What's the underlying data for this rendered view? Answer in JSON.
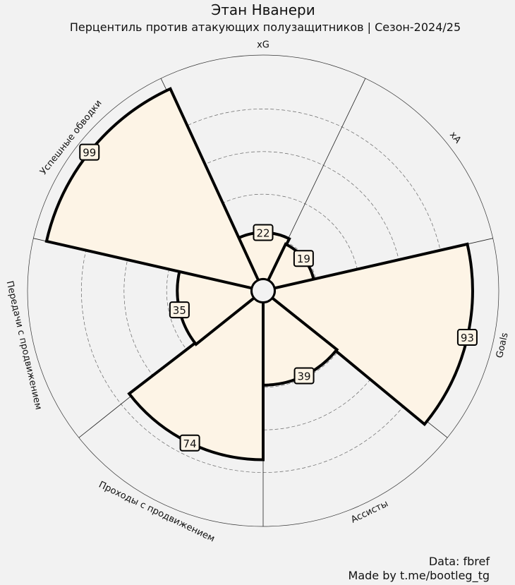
{
  "header": {
    "title": "Этан Нванери",
    "subtitle": "Перцентиль против атакующих полузащитников | Сезон-2024/25"
  },
  "credits": {
    "source": "Data: fbref",
    "author": "Made by t.me/bootleg_tg"
  },
  "colors": {
    "background": "#f2f2f2",
    "slice_fill": "#fdf4e6",
    "slice_edge": "#000000",
    "center_fill": "#f2f2f2"
  },
  "chart_data": {
    "type": "pizza",
    "title": "Этан Нванери",
    "subtitle": "Перцентиль против атакующих полузащитников | Сезон-2024/25",
    "range": [
      0,
      100
    ],
    "grid": true,
    "categories": [
      "xG",
      "xA",
      "Goals",
      "Ассисты",
      "Проходы с продвижением",
      "Передачи с продвижением",
      "Успешные обводки"
    ],
    "values": [
      22,
      19,
      93,
      39,
      74,
      35,
      99
    ]
  }
}
